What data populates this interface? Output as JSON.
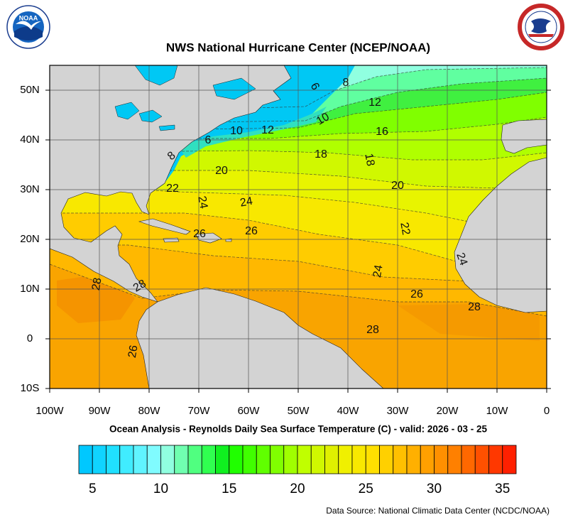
{
  "title": "NWS National Hurricane Center (NCEP/NOAA)",
  "subtitle": "Ocean Analysis - Reynolds Daily Sea Surface Temperature (C) - valid: 2026 - 03 - 25",
  "source": "Data Source: National Climatic Data Center (NCDC/NOAA)",
  "logo_text": "NOAA",
  "map": {
    "x_labels": [
      "100W",
      "90W",
      "80W",
      "70W",
      "60W",
      "50W",
      "40W",
      "30W",
      "20W",
      "10W",
      "0"
    ],
    "y_labels": [
      "50N",
      "40N",
      "30N",
      "20N",
      "10N",
      "0",
      "10S"
    ],
    "contour_labels": [
      6,
      8,
      12,
      10,
      16,
      10,
      12,
      6,
      8,
      18,
      18,
      20,
      20,
      22,
      24,
      24,
      26,
      26,
      22,
      24,
      28,
      28,
      24,
      26,
      28,
      28,
      26
    ]
  },
  "colorbar": {
    "range": [
      4,
      36
    ],
    "ticks": [
      5,
      10,
      15,
      20,
      25,
      30,
      35
    ],
    "colors": [
      "#00c8ff",
      "#10d4ff",
      "#20e0ff",
      "#40ecff",
      "#60f4ff",
      "#80fcff",
      "#90ffe0",
      "#70ffb0",
      "#50ff80",
      "#30ff50",
      "#10f020",
      "#20ff00",
      "#40ff00",
      "#60ff00",
      "#80ff00",
      "#a0ff00",
      "#c0ff00",
      "#d0f800",
      "#e0f000",
      "#f0f000",
      "#f8e800",
      "#ffe000",
      "#ffd000",
      "#ffc000",
      "#ffb000",
      "#ffa000",
      "#ff9000",
      "#ff8000",
      "#ff6800",
      "#ff5000",
      "#ff3800",
      "#ff2000"
    ]
  }
}
